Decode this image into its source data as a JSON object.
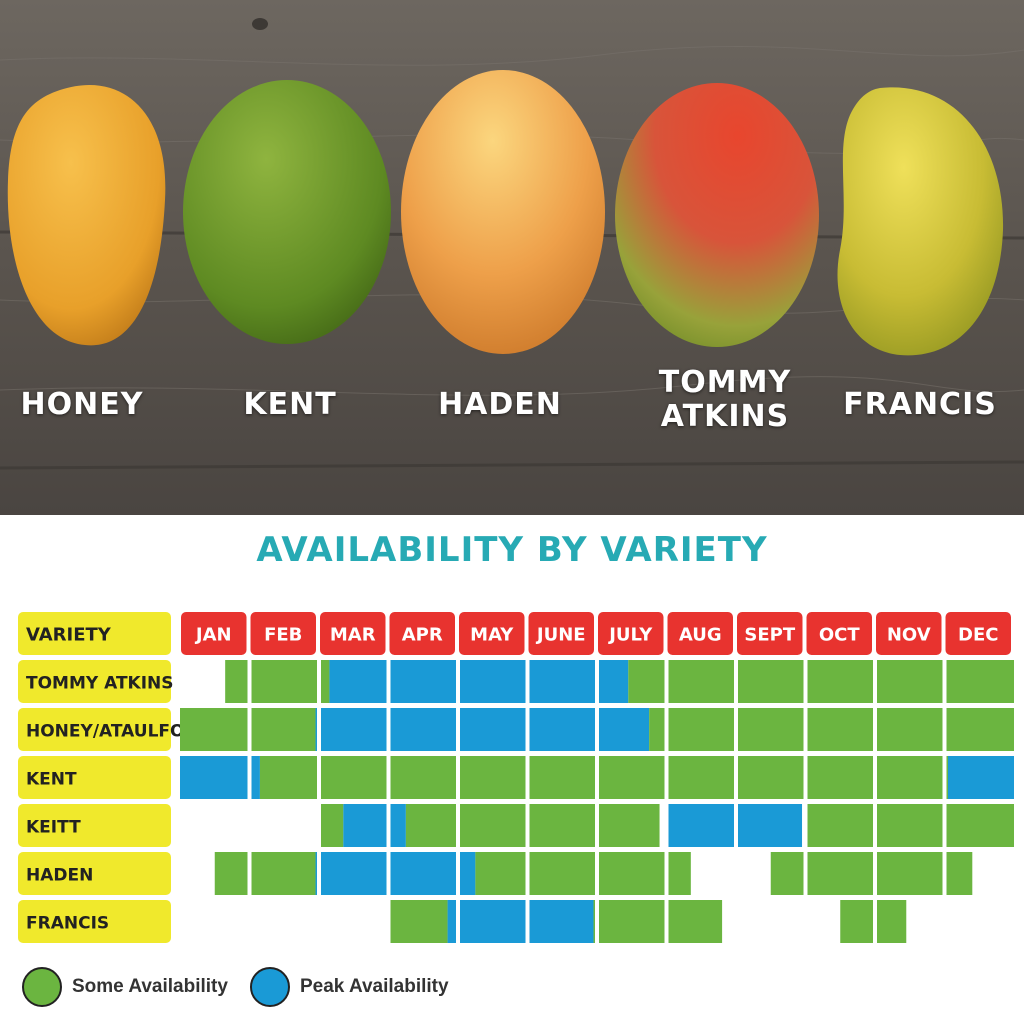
{
  "photo": {
    "labels": {
      "honey": "HONEY",
      "kent": "KENT",
      "haden": "HADEN",
      "tommy_1": "TOMMY",
      "tommy_2": "ATKINS",
      "francis": "FRANCIS"
    }
  },
  "colors": {
    "some": "#6bb540",
    "peak": "#1a9ad6",
    "month_header": "#e8332f",
    "variety_cell": "#f0e92c",
    "title": "#27aab4"
  },
  "chart_data": {
    "type": "table",
    "title": "AVAILABILITY BY VARIETY",
    "header_label": "VARIETY",
    "months": [
      "JAN",
      "FEB",
      "MAR",
      "APR",
      "MAY",
      "JUNE",
      "JULY",
      "AUG",
      "SEPT",
      "OCT",
      "NOV",
      "DEC"
    ],
    "varieties": [
      {
        "name": "TOMMY ATKINS",
        "segments": [
          {
            "start": 0.65,
            "end": 2.15,
            "level": "some"
          },
          {
            "start": 2.15,
            "end": 6.45,
            "level": "peak"
          },
          {
            "start": 6.45,
            "end": 12,
            "level": "some"
          }
        ]
      },
      {
        "name": "HONEY/ATAULFO",
        "segments": [
          {
            "start": 0,
            "end": 1.95,
            "level": "some"
          },
          {
            "start": 1.95,
            "end": 6.75,
            "level": "peak"
          },
          {
            "start": 6.75,
            "end": 12,
            "level": "some"
          }
        ]
      },
      {
        "name": "KENT",
        "segments": [
          {
            "start": 0,
            "end": 1.15,
            "level": "peak"
          },
          {
            "start": 1.15,
            "end": 11.05,
            "level": "some"
          },
          {
            "start": 11.05,
            "end": 12,
            "level": "peak"
          }
        ]
      },
      {
        "name": "KEITT",
        "segments": [
          {
            "start": 2,
            "end": 2.35,
            "level": "some"
          },
          {
            "start": 2.35,
            "end": 3.25,
            "level": "peak"
          },
          {
            "start": 3.25,
            "end": 6.9,
            "level": "some"
          },
          {
            "start": 7,
            "end": 8.95,
            "level": "peak"
          },
          {
            "start": 9,
            "end": 12,
            "level": "some"
          }
        ]
      },
      {
        "name": "HADEN",
        "segments": [
          {
            "start": 0.5,
            "end": 1.95,
            "level": "some"
          },
          {
            "start": 1.95,
            "end": 4.25,
            "level": "peak"
          },
          {
            "start": 4.25,
            "end": 7.35,
            "level": "some"
          },
          {
            "start": 8.5,
            "end": 11.4,
            "level": "some"
          }
        ]
      },
      {
        "name": "FRANCIS",
        "segments": [
          {
            "start": 3,
            "end": 3.85,
            "level": "some"
          },
          {
            "start": 3.85,
            "end": 5.95,
            "level": "peak"
          },
          {
            "start": 5.95,
            "end": 7.8,
            "level": "some"
          },
          {
            "start": 9.5,
            "end": 10.45,
            "level": "some"
          }
        ]
      }
    ],
    "legend": [
      {
        "level": "some",
        "label": "Some Availability"
      },
      {
        "level": "peak",
        "label": "Peak Availability"
      }
    ]
  }
}
